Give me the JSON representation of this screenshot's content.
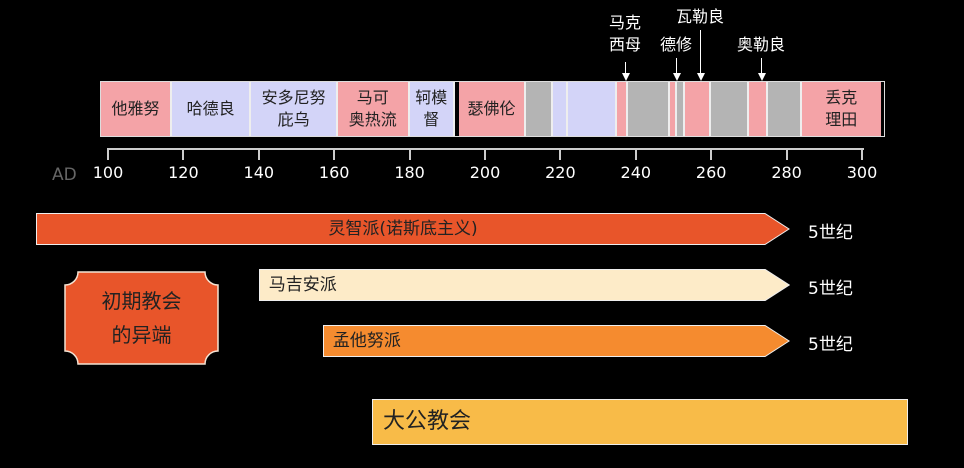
{
  "axis": {
    "prefix": "AD",
    "ticks": [
      "100",
      "120",
      "140",
      "160",
      "180",
      "200",
      "220",
      "240",
      "260",
      "280",
      "300"
    ]
  },
  "colors": {
    "pink": "#f4a3a7",
    "lavender": "#d3d4f8",
    "gray": "#b4b4b4",
    "gnostic": "#e8552a",
    "marcion": "#fdebc8",
    "montanist": "#f58b2f",
    "catholic": "#f8bb48"
  },
  "emperors": [
    {
      "label": "他雅努",
      "start": 98,
      "end": 117,
      "color": "pink"
    },
    {
      "label": "哈德良",
      "start": 117,
      "end": 138,
      "color": "lavender"
    },
    {
      "label": "安多尼努\n庇乌",
      "start": 138,
      "end": 161,
      "color": "lavender"
    },
    {
      "label": "马可\n奥热流",
      "start": 161,
      "end": 180,
      "color": "pink"
    },
    {
      "label": "轲模\n督",
      "start": 180,
      "end": 192,
      "color": "lavender"
    },
    {
      "label": "瑟佛伦",
      "start": 193,
      "end": 211,
      "color": "pink"
    },
    {
      "label": "",
      "start": 211,
      "end": 218,
      "color": "gray"
    },
    {
      "label": "",
      "start": 218,
      "end": 222,
      "color": "lavender"
    },
    {
      "label": "",
      "start": 222,
      "end": 235,
      "color": "lavender"
    },
    {
      "label": "",
      "start": 235,
      "end": 238,
      "color": "pink"
    },
    {
      "label": "",
      "start": 238,
      "end": 249,
      "color": "gray"
    },
    {
      "label": "",
      "start": 249,
      "end": 251,
      "color": "pink"
    },
    {
      "label": "",
      "start": 251,
      "end": 253,
      "color": "gray"
    },
    {
      "label": "",
      "start": 253,
      "end": 260,
      "color": "pink"
    },
    {
      "label": "",
      "start": 260,
      "end": 270,
      "color": "gray"
    },
    {
      "label": "",
      "start": 270,
      "end": 275,
      "color": "pink"
    },
    {
      "label": "",
      "start": 275,
      "end": 284,
      "color": "gray"
    },
    {
      "label": "丢克\n理田",
      "start": 284,
      "end": 305,
      "color": "pink"
    }
  ],
  "annotations": [
    {
      "label": "马克\n西母",
      "year": 235
    },
    {
      "label": "德修",
      "year": 249
    },
    {
      "label": "瓦勒良",
      "year": 253
    },
    {
      "label": "奥勒良",
      "year": 270
    }
  ],
  "heresy_box": "初期教会\n的异端",
  "flows": [
    {
      "label": "灵智派(诺斯底主义)",
      "end_label": "5世纪",
      "color": "gnostic",
      "start": 80
    },
    {
      "label": "马吉安派",
      "end_label": "5世纪",
      "color": "marcion",
      "start": 140
    },
    {
      "label": "孟他努派",
      "end_label": "5世纪",
      "color": "montanist",
      "start": 157
    }
  ],
  "catholic": {
    "label": "大公教会"
  }
}
